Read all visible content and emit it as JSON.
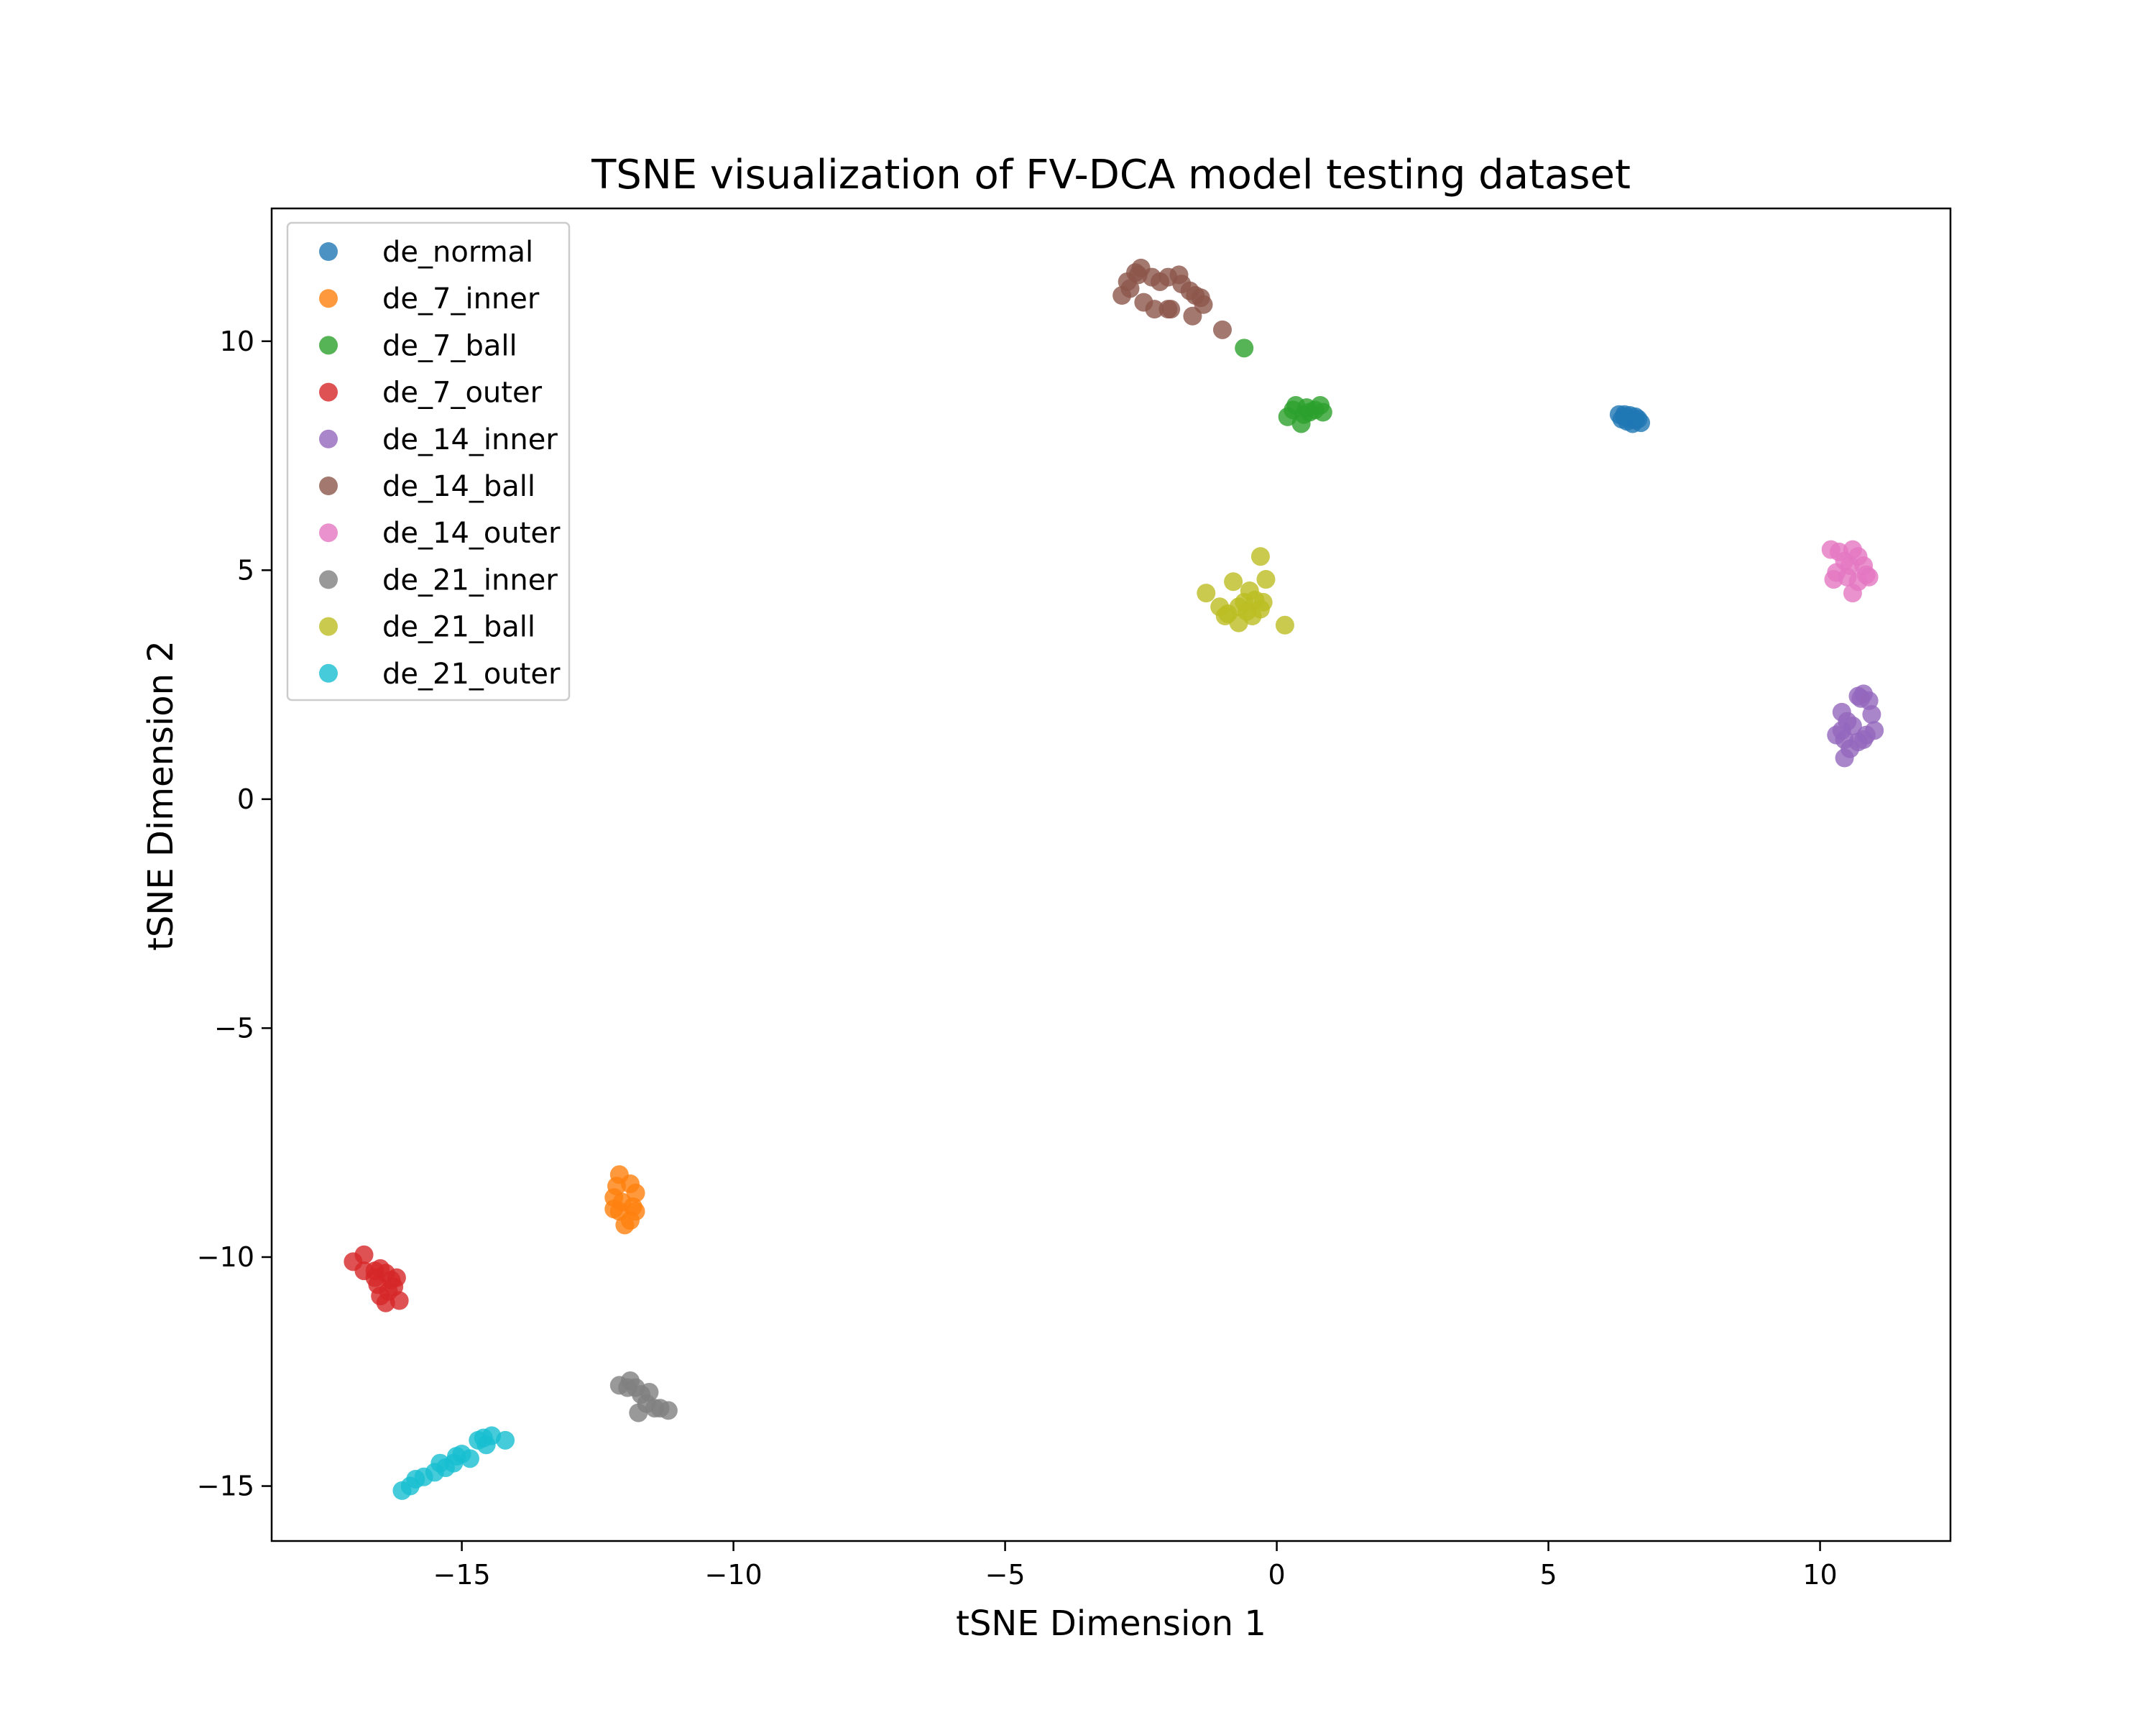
{
  "chart_data": {
    "type": "scatter",
    "title": "TSNE visualization of FV-DCA model testing dataset",
    "xlabel": "tSNE Dimension 1",
    "ylabel": "tSNE Dimension 2",
    "xlim": [
      -18.5,
      12.4
    ],
    "ylim": [
      -16.2,
      12.9
    ],
    "xticks": [
      -15,
      -10,
      -5,
      0,
      5,
      10
    ],
    "yticks": [
      -15,
      -10,
      -5,
      0,
      5,
      10
    ],
    "xtick_labels": [
      "−15",
      "−10",
      "−5",
      "0",
      "5",
      "10"
    ],
    "ytick_labels": [
      "−15",
      "−10",
      "−5",
      "0",
      "5",
      "10"
    ],
    "grid": false,
    "legend_position": "upper-left",
    "series": [
      {
        "name": "de_normal",
        "color": "#1f77b4",
        "points": [
          [
            6.3,
            8.4
          ],
          [
            6.4,
            8.35
          ],
          [
            6.5,
            8.3
          ],
          [
            6.6,
            8.35
          ],
          [
            6.45,
            8.25
          ],
          [
            6.55,
            8.2
          ],
          [
            6.7,
            8.22
          ],
          [
            6.35,
            8.3
          ],
          [
            6.6,
            8.28
          ],
          [
            6.4,
            8.4
          ],
          [
            6.5,
            8.38
          ],
          [
            6.65,
            8.3
          ]
        ]
      },
      {
        "name": "de_7_inner",
        "color": "#ff7f0e",
        "points": [
          [
            -12.1,
            -8.2
          ],
          [
            -11.9,
            -8.4
          ],
          [
            -11.8,
            -8.6
          ],
          [
            -12.2,
            -8.7
          ],
          [
            -11.85,
            -8.9
          ],
          [
            -12.1,
            -9.0
          ],
          [
            -11.9,
            -9.2
          ],
          [
            -12.0,
            -9.3
          ],
          [
            -12.15,
            -8.45
          ],
          [
            -11.8,
            -9.0
          ],
          [
            -12.05,
            -8.8
          ],
          [
            -12.2,
            -8.95
          ]
        ]
      },
      {
        "name": "de_7_ball",
        "color": "#2ca02c",
        "points": [
          [
            -0.6,
            9.85
          ],
          [
            0.35,
            8.6
          ],
          [
            0.55,
            8.55
          ],
          [
            0.8,
            8.6
          ],
          [
            0.5,
            8.4
          ],
          [
            0.85,
            8.45
          ],
          [
            0.2,
            8.35
          ],
          [
            0.6,
            8.45
          ],
          [
            0.45,
            8.2
          ],
          [
            0.7,
            8.5
          ],
          [
            0.3,
            8.5
          ]
        ]
      },
      {
        "name": "de_7_outer",
        "color": "#d62728",
        "points": [
          [
            -17.0,
            -10.1
          ],
          [
            -16.8,
            -9.95
          ],
          [
            -16.6,
            -10.3
          ],
          [
            -16.5,
            -10.25
          ],
          [
            -16.4,
            -10.35
          ],
          [
            -16.3,
            -10.5
          ],
          [
            -16.55,
            -10.6
          ],
          [
            -16.35,
            -10.75
          ],
          [
            -16.5,
            -10.85
          ],
          [
            -16.4,
            -11.0
          ],
          [
            -16.15,
            -10.95
          ],
          [
            -16.2,
            -10.45
          ],
          [
            -16.8,
            -10.3
          ],
          [
            -16.6,
            -10.45
          ],
          [
            -16.25,
            -10.65
          ]
        ]
      },
      {
        "name": "de_14_inner",
        "color": "#9467bd",
        "points": [
          [
            10.4,
            1.9
          ],
          [
            10.5,
            1.7
          ],
          [
            10.3,
            1.4
          ],
          [
            10.45,
            1.3
          ],
          [
            10.55,
            1.1
          ],
          [
            10.45,
            0.9
          ],
          [
            10.7,
            2.25
          ],
          [
            10.8,
            2.3
          ],
          [
            10.9,
            2.15
          ],
          [
            10.95,
            1.85
          ],
          [
            11.0,
            1.5
          ],
          [
            10.85,
            1.4
          ],
          [
            10.7,
            1.25
          ],
          [
            10.8,
            1.3
          ],
          [
            10.6,
            1.6
          ],
          [
            10.4,
            1.5
          ],
          [
            10.75,
            2.2
          ]
        ]
      },
      {
        "name": "de_14_ball",
        "color": "#8c564b",
        "points": [
          [
            -2.85,
            11.0
          ],
          [
            -2.75,
            11.3
          ],
          [
            -2.6,
            11.5
          ],
          [
            -2.5,
            11.6
          ],
          [
            -2.3,
            11.4
          ],
          [
            -2.0,
            11.4
          ],
          [
            -1.8,
            11.45
          ],
          [
            -1.6,
            11.1
          ],
          [
            -1.5,
            11.0
          ],
          [
            -1.35,
            10.8
          ],
          [
            -1.55,
            10.55
          ],
          [
            -1.95,
            10.7
          ],
          [
            -2.25,
            10.7
          ],
          [
            -2.45,
            10.85
          ],
          [
            -2.7,
            11.15
          ],
          [
            -2.15,
            11.3
          ],
          [
            -1.75,
            11.25
          ],
          [
            -1.0,
            10.25
          ],
          [
            -1.4,
            10.95
          ],
          [
            -2.55,
            11.45
          ],
          [
            -2.0,
            10.7
          ]
        ]
      },
      {
        "name": "de_14_outer",
        "color": "#e377c2",
        "points": [
          [
            10.2,
            5.45
          ],
          [
            10.35,
            5.4
          ],
          [
            10.45,
            5.2
          ],
          [
            10.6,
            5.45
          ],
          [
            10.7,
            5.3
          ],
          [
            10.8,
            5.1
          ],
          [
            10.85,
            4.9
          ],
          [
            10.7,
            4.75
          ],
          [
            10.6,
            4.5
          ],
          [
            10.5,
            4.85
          ],
          [
            10.3,
            4.95
          ],
          [
            10.25,
            4.8
          ],
          [
            10.55,
            5.1
          ],
          [
            10.9,
            4.85
          ]
        ]
      },
      {
        "name": "de_21_inner",
        "color": "#7f7f7f",
        "points": [
          [
            -12.1,
            -12.8
          ],
          [
            -11.9,
            -12.7
          ],
          [
            -11.8,
            -12.85
          ],
          [
            -11.7,
            -13.0
          ],
          [
            -11.55,
            -12.95
          ],
          [
            -11.6,
            -13.2
          ],
          [
            -11.45,
            -13.3
          ],
          [
            -11.2,
            -13.35
          ],
          [
            -11.35,
            -13.3
          ],
          [
            -11.75,
            -13.4
          ],
          [
            -11.95,
            -12.85
          ]
        ]
      },
      {
        "name": "de_21_ball",
        "color": "#bcbd22",
        "points": [
          [
            -1.3,
            4.5
          ],
          [
            -1.05,
            4.2
          ],
          [
            -0.95,
            4.0
          ],
          [
            -0.8,
            4.75
          ],
          [
            -0.7,
            4.2
          ],
          [
            -0.6,
            4.3
          ],
          [
            -0.5,
            4.55
          ],
          [
            -0.4,
            4.35
          ],
          [
            -0.3,
            4.15
          ],
          [
            -0.25,
            4.3
          ],
          [
            -0.2,
            4.8
          ],
          [
            -0.3,
            5.3
          ],
          [
            -0.7,
            3.85
          ],
          [
            -0.45,
            4.0
          ],
          [
            0.15,
            3.8
          ],
          [
            -0.9,
            4.05
          ],
          [
            -0.55,
            4.1
          ]
        ]
      },
      {
        "name": "de_21_outer",
        "color": "#17becf",
        "points": [
          [
            -16.1,
            -15.1
          ],
          [
            -15.95,
            -15.0
          ],
          [
            -15.85,
            -14.85
          ],
          [
            -15.7,
            -14.8
          ],
          [
            -15.5,
            -14.7
          ],
          [
            -15.4,
            -14.5
          ],
          [
            -15.3,
            -14.6
          ],
          [
            -15.15,
            -14.5
          ],
          [
            -15.0,
            -14.3
          ],
          [
            -14.85,
            -14.4
          ],
          [
            -14.7,
            -14.0
          ],
          [
            -14.55,
            -14.1
          ],
          [
            -14.45,
            -13.9
          ],
          [
            -14.2,
            -14.0
          ],
          [
            -15.1,
            -14.35
          ],
          [
            -14.6,
            -13.95
          ]
        ]
      }
    ]
  }
}
